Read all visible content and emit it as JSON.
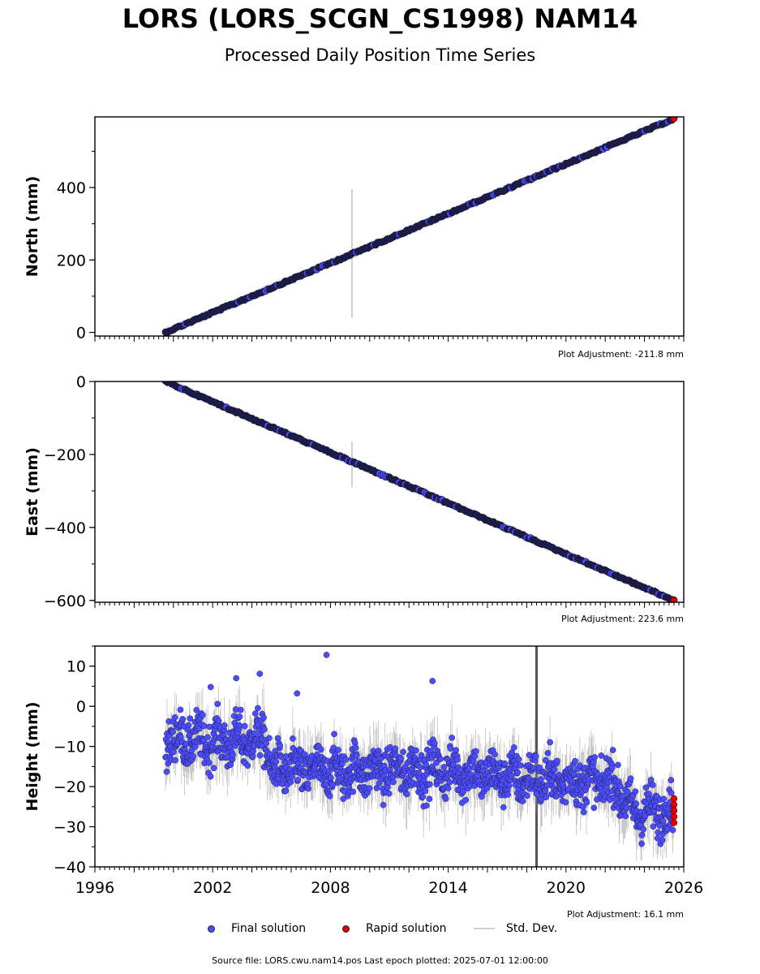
{
  "title": "LORS (LORS_SCGN_CS1998) NAM14",
  "subtitle": "Processed Daily Position Time Series",
  "source_text": "Source file: LORS.cwu.nam14.pos  Last epoch plotted: 2025-07-01 12:00:00",
  "legend": {
    "final": "Final solution",
    "rapid": "Rapid solution",
    "std": "Std. Dev."
  },
  "colors": {
    "final": "#4b4bff",
    "rapid": "#e00000",
    "std": "#999999",
    "dark": "#1e1e4a"
  },
  "chart_data": [
    {
      "type": "scatter",
      "ylabel": "North (mm)",
      "adjustment_text": "Plot Adjustment: -211.8 mm",
      "xlim": [
        1996,
        2026
      ],
      "ylim": [
        -10,
        595
      ],
      "yticks": [
        0,
        200,
        400
      ],
      "yticklabels": [
        "0",
        "200",
        "400"
      ],
      "show_xticklabels": false,
      "x_start": 1999.6,
      "x_end": 2025.5,
      "y_start": 0,
      "y_end": 590,
      "std_spikes": [
        {
          "x": 2009.1,
          "y_low": 40,
          "y_high": 395
        }
      ],
      "rapid_points": [
        {
          "x": 2025.5,
          "y": 590
        }
      ]
    },
    {
      "type": "scatter",
      "ylabel": "East (mm)",
      "adjustment_text": "Plot Adjustment: 223.6 mm",
      "xlim": [
        1996,
        2026
      ],
      "ylim": [
        -605,
        0
      ],
      "yticks": [
        0,
        -200,
        -400,
        -600
      ],
      "yticklabels": [
        "0",
        "−200",
        "−400",
        "−600"
      ],
      "show_xticklabels": false,
      "x_start": 1999.6,
      "x_end": 2025.5,
      "y_start": 0,
      "y_end": -600,
      "std_spikes": [
        {
          "x": 2009.1,
          "y_low": -290,
          "y_high": -165
        }
      ],
      "rapid_points": [
        {
          "x": 2025.5,
          "y": -600
        }
      ]
    },
    {
      "type": "scatter",
      "ylabel": "Height (mm)",
      "adjustment_text": "Plot Adjustment: 16.1 mm",
      "xlim": [
        1996,
        2026
      ],
      "ylim": [
        -40,
        15
      ],
      "yticks": [
        10,
        0,
        -10,
        -20,
        -30,
        -40
      ],
      "yticklabels": [
        "10",
        "0",
        "−10",
        "−20",
        "−30",
        "−40"
      ],
      "xticks": [
        1996,
        2002,
        2008,
        2014,
        2020,
        2026
      ],
      "xticklabels": [
        "1996",
        "2002",
        "2008",
        "2014",
        "2020",
        "2026"
      ],
      "show_xticklabels": true,
      "x_start": 1999.6,
      "x_end": 2025.5,
      "trend": [
        {
          "x": 1999.6,
          "y": -8
        },
        {
          "x": 2002.5,
          "y": -9
        },
        {
          "x": 2004.7,
          "y": -8
        },
        {
          "x": 2005.0,
          "y": -16
        },
        {
          "x": 2010.0,
          "y": -16
        },
        {
          "x": 2014.0,
          "y": -16
        },
        {
          "x": 2018.0,
          "y": -18
        },
        {
          "x": 2022.5,
          "y": -19
        },
        {
          "x": 2023.3,
          "y": -26
        },
        {
          "x": 2025.5,
          "y": -26
        }
      ],
      "outliers": [
        {
          "x": 2007.8,
          "y": 12.8
        },
        {
          "x": 2013.2,
          "y": 6.3
        },
        {
          "x": 2006.3,
          "y": 3.2
        },
        {
          "x": 2004.4,
          "y": 8.1
        },
        {
          "x": 2001.9,
          "y": 4.8
        },
        {
          "x": 2003.2,
          "y": 7.0
        }
      ],
      "std_spikes": [
        {
          "x": 2018.5,
          "y_low": -40,
          "y_high": 15,
          "dark": true
        }
      ],
      "rapid_points": [
        {
          "x": 2025.5,
          "y": -23
        },
        {
          "x": 2025.5,
          "y": -24.5
        },
        {
          "x": 2025.5,
          "y": -26
        },
        {
          "x": 2025.5,
          "y": -27.5
        },
        {
          "x": 2025.5,
          "y": -29
        }
      ]
    }
  ]
}
